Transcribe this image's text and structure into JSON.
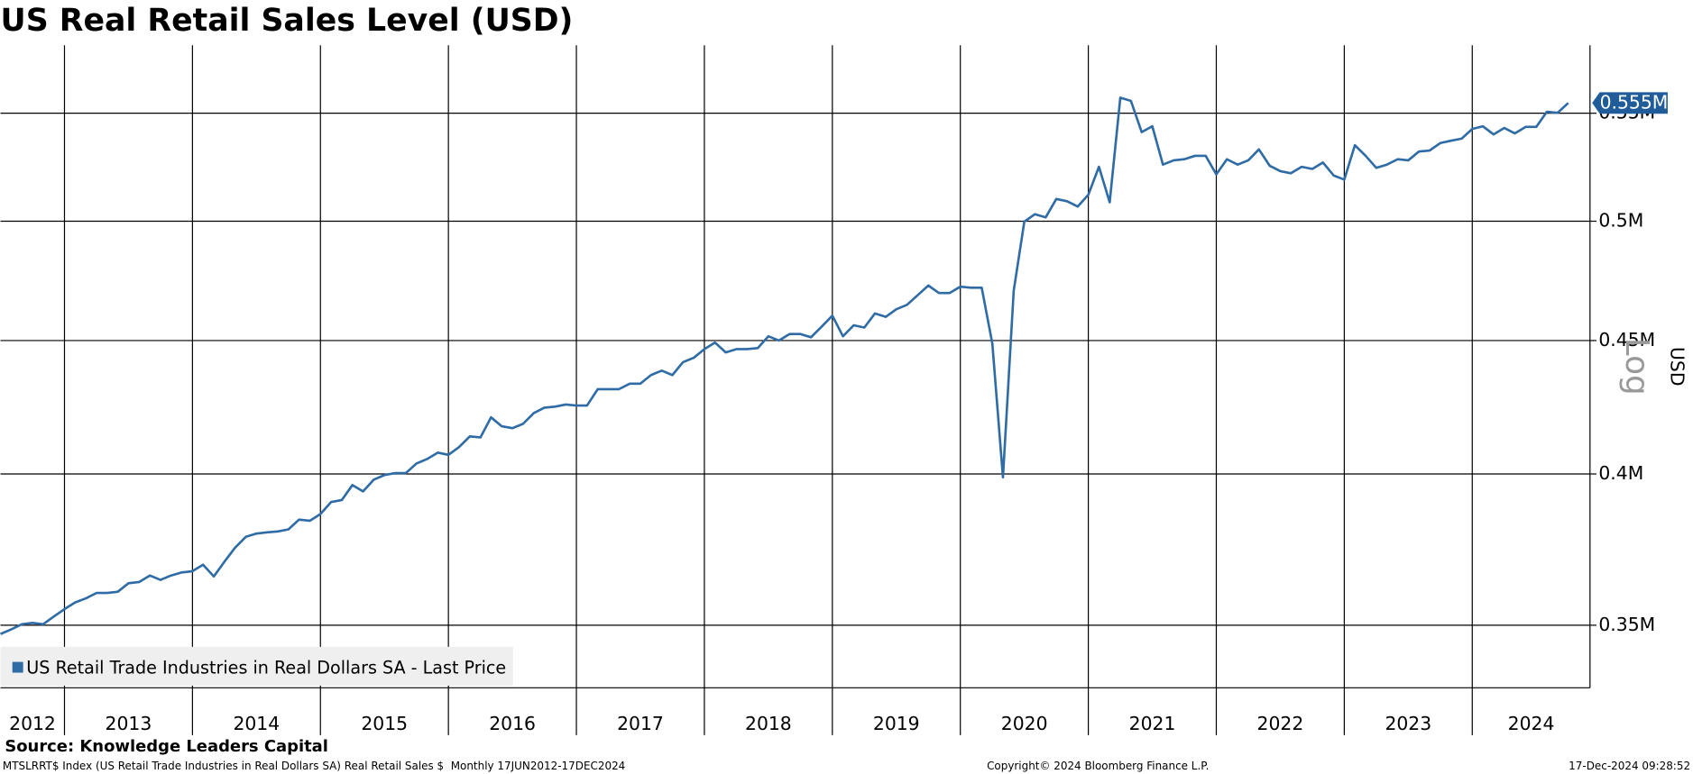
{
  "chart_data": {
    "type": "line",
    "title": "US Real Retail Sales Level (USD)",
    "ylabel": "USD",
    "y_scale_label": "Log",
    "log_scale": true,
    "grid": true,
    "legend_position": "bottom-left",
    "xlim": [
      2012.5,
      2024.92
    ],
    "xticks": [
      2012,
      2013,
      2014,
      2015,
      2016,
      2017,
      2018,
      2019,
      2020,
      2021,
      2022,
      2023,
      2024
    ],
    "ylim": [
      331200,
      584000
    ],
    "yticks": [
      {
        "value": 350000,
        "label": "0.35M"
      },
      {
        "value": 400000,
        "label": "0.4M"
      },
      {
        "value": 450000,
        "label": "0.45M"
      },
      {
        "value": 500000,
        "label": "0.5M"
      },
      {
        "value": 550000,
        "label": "0.55M"
      }
    ],
    "last_price": {
      "value": 555000,
      "label": "0.555M"
    },
    "x": [
      2012.5,
      2012.583,
      2012.667,
      2012.75,
      2012.833,
      2012.917,
      2013,
      2013.083,
      2013.167,
      2013.25,
      2013.333,
      2013.417,
      2013.5,
      2013.583,
      2013.667,
      2013.75,
      2013.833,
      2013.917,
      2014,
      2014.083,
      2014.167,
      2014.25,
      2014.333,
      2014.417,
      2014.5,
      2014.583,
      2014.667,
      2014.75,
      2014.833,
      2014.917,
      2015,
      2015.083,
      2015.167,
      2015.25,
      2015.333,
      2015.417,
      2015.5,
      2015.583,
      2015.667,
      2015.75,
      2015.833,
      2015.917,
      2016,
      2016.083,
      2016.167,
      2016.25,
      2016.333,
      2016.417,
      2016.5,
      2016.583,
      2016.667,
      2016.75,
      2016.833,
      2016.917,
      2017,
      2017.083,
      2017.167,
      2017.25,
      2017.333,
      2017.417,
      2017.5,
      2017.583,
      2017.667,
      2017.75,
      2017.833,
      2017.917,
      2018,
      2018.083,
      2018.167,
      2018.25,
      2018.333,
      2018.417,
      2018.5,
      2018.583,
      2018.667,
      2018.75,
      2018.833,
      2018.917,
      2019,
      2019.083,
      2019.167,
      2019.25,
      2019.333,
      2019.417,
      2019.5,
      2019.583,
      2019.667,
      2019.75,
      2019.833,
      2019.917,
      2020,
      2020.083,
      2020.167,
      2020.25,
      2020.333,
      2020.417,
      2020.5,
      2020.583,
      2020.667,
      2020.75,
      2020.833,
      2020.917,
      2021,
      2021.083,
      2021.167,
      2021.25,
      2021.333,
      2021.417,
      2021.5,
      2021.583,
      2021.667,
      2021.75,
      2021.833,
      2021.917,
      2022,
      2022.083,
      2022.167,
      2022.25,
      2022.333,
      2022.417,
      2022.5,
      2022.583,
      2022.667,
      2022.75,
      2022.833,
      2022.917,
      2023,
      2023.083,
      2023.167,
      2023.25,
      2023.333,
      2023.417,
      2023.5,
      2023.583,
      2023.667,
      2023.75,
      2023.833,
      2023.917,
      2024,
      2024.083,
      2024.167,
      2024.25,
      2024.333,
      2024.417,
      2024.5,
      2024.583,
      2024.667,
      2024.75
    ],
    "series": [
      {
        "name": "US Retail Trade Industries in Real Dollars SA - Last Price",
        "color": "#2f6ca6",
        "values": [
          347300,
          348700,
          350300,
          350700,
          350300,
          352700,
          355000,
          357100,
          358400,
          360100,
          360100,
          360500,
          363200,
          363600,
          365700,
          364300,
          365700,
          366700,
          367100,
          369200,
          365400,
          370200,
          374800,
          378400,
          379500,
          379900,
          380200,
          380900,
          384200,
          383800,
          386100,
          390200,
          390900,
          396100,
          393900,
          398000,
          399600,
          400300,
          400300,
          403700,
          405300,
          407600,
          406800,
          409600,
          413500,
          413100,
          420500,
          417200,
          416500,
          418100,
          422100,
          424100,
          424500,
          425300,
          424900,
          424900,
          431100,
          431100,
          431100,
          433200,
          433200,
          436500,
          438200,
          436500,
          441500,
          443200,
          446600,
          449200,
          445300,
          446600,
          446600,
          447000,
          451700,
          450000,
          452600,
          452600,
          451300,
          455600,
          460000,
          451700,
          456100,
          455200,
          460900,
          459500,
          462600,
          464400,
          468400,
          472400,
          469300,
          469300,
          471900,
          471500,
          471500,
          448800,
          398800,
          470200,
          499800,
          503100,
          501700,
          509900,
          508900,
          506500,
          511800,
          524600,
          508400,
          557600,
          556000,
          540900,
          543700,
          525600,
          527600,
          528100,
          529700,
          529700,
          521100,
          528100,
          525600,
          527600,
          532700,
          525100,
          522600,
          521600,
          524600,
          523600,
          526600,
          520600,
          518700,
          534700,
          529700,
          524100,
          525600,
          528100,
          527600,
          531700,
          532200,
          535700,
          536800,
          537800,
          542400,
          543700,
          539800,
          542900,
          540300,
          543400,
          543400,
          550700,
          550200,
          555000
        ]
      }
    ]
  },
  "footer": {
    "source": "Source: Knowledge Leaders Capital",
    "description": "MTSLRRT$ Index (US Retail Trade Industries in Real Dollars SA) Real Retail Sales $  Monthly 17JUN2012-17DEC2024",
    "copyright": "Copyright© 2024 Bloomberg Finance L.P.",
    "timestamp": "17-Dec-2024 09:28:52"
  }
}
